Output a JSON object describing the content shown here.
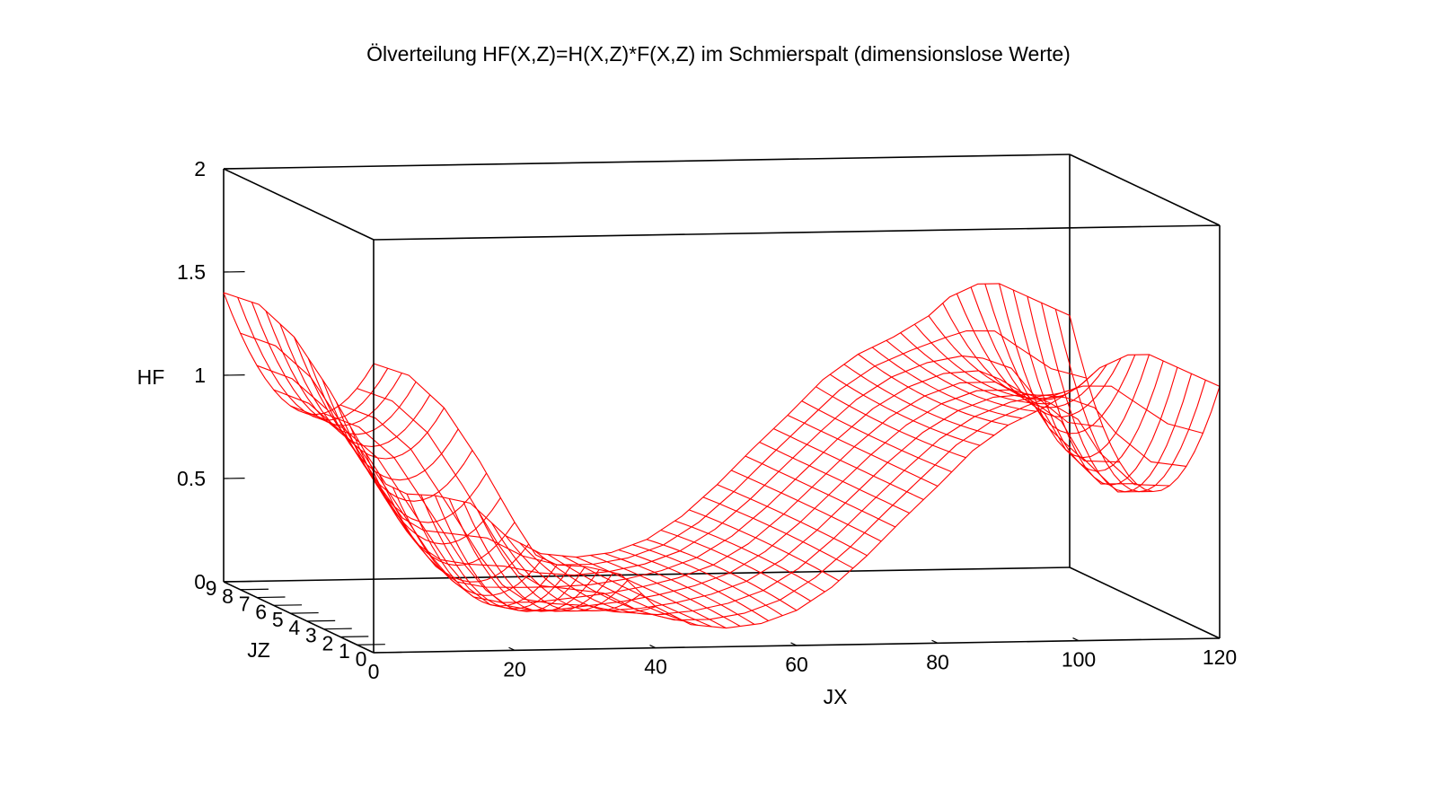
{
  "chart_data": {
    "type": "surface",
    "title": "Ölverteilung HF(X,Z)=H(X,Z)*F(X,Z) im Schmierspalt (dimensionslose Werte)",
    "xlabel": "JX",
    "ylabel": "JZ",
    "zlabel": "HF",
    "xlim": [
      0,
      120
    ],
    "ylim": [
      0,
      9
    ],
    "zlim": [
      0,
      2
    ],
    "xticks": [
      "0",
      "20",
      "40",
      "60",
      "80",
      "100",
      "120"
    ],
    "yticks": [
      "0",
      "1",
      "2",
      "3",
      "4",
      "5",
      "6",
      "7",
      "8",
      "9"
    ],
    "zticks": [
      "0",
      "0.5",
      "1",
      "1.5",
      "2"
    ],
    "color": "#ff0000",
    "jz": [
      0,
      1,
      2,
      3,
      4,
      5,
      6,
      7,
      8,
      9
    ],
    "jx": [
      0,
      5,
      10,
      15,
      20,
      23,
      26,
      30,
      35,
      40,
      45,
      50,
      55,
      60,
      65,
      70,
      75,
      80,
      85,
      90,
      95,
      100,
      103,
      107,
      110,
      115,
      120
    ],
    "hf_center": [
      1.0,
      0.93,
      0.78,
      0.52,
      0.26,
      0.14,
      0.06,
      0.03,
      0.03,
      0.05,
      0.07,
      0.1,
      0.14,
      0.2,
      0.3,
      0.44,
      0.6,
      0.76,
      0.9,
      1.0,
      1.06,
      1.06,
      1.0,
      0.9,
      0.72,
      0.55,
      0.55
    ],
    "hf_edge": [
      1.4,
      1.34,
      1.18,
      0.92,
      0.62,
      0.46,
      0.41,
      0.4,
      0.36,
      0.2,
      0.11,
      0.09,
      0.11,
      0.17,
      0.28,
      0.43,
      0.6,
      0.76,
      0.93,
      1.05,
      1.13,
      1.23,
      1.32,
      1.38,
      1.38,
      1.3,
      1.22
    ]
  }
}
